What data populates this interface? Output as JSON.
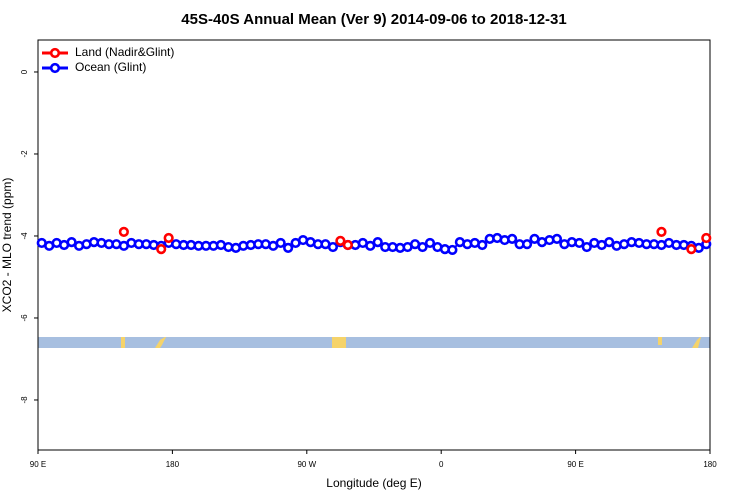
{
  "chart_data": {
    "type": "scatter",
    "title": "45S-40S Annual Mean (Ver 9)   2014-09-06 to 2018-12-31",
    "x_label": "Longitude (deg E)",
    "y_label": "XCO2 - MLO trend (ppm)",
    "xlim": [
      90,
      540
    ],
    "ylim": [
      -9.22,
      0.78
    ],
    "xticks": [
      {
        "value": 90,
        "label": "90 E"
      },
      180,
      {
        "value": 270,
        "label": "90 W"
      },
      {
        "value": 360,
        "label": "0"
      },
      {
        "value": 450,
        "label": "90 E"
      },
      {
        "value": 540,
        "label": "180"
      }
    ],
    "yticks": [
      0,
      -2,
      -4,
      -6,
      -8
    ],
    "legend": "top-left",
    "series": [
      {
        "name": "Land (Nadir&Glint)",
        "color": "#ff0000",
        "line": false,
        "x": [
          147.5,
          172.5,
          177.5,
          292.5,
          297.5,
          507.5,
          527.5,
          537.5
        ],
        "values": [
          -3.9,
          -4.32,
          -4.05,
          -4.12,
          -4.22,
          -3.9,
          -4.32,
          -4.05
        ]
      },
      {
        "name": "Ocean (Glint)",
        "color": "#0000ff",
        "line": true,
        "x": [
          92.5,
          97.5,
          102.5,
          107.5,
          112.5,
          117.5,
          122.5,
          127.5,
          132.5,
          137.5,
          142.5,
          147.5,
          152.5,
          157.5,
          162.5,
          167.5,
          172.5,
          177.5,
          182.5,
          187.5,
          192.5,
          197.5,
          202.5,
          207.5,
          212.5,
          217.5,
          222.5,
          227.5,
          232.5,
          237.5,
          242.5,
          247.5,
          252.5,
          257.5,
          262.5,
          267.5,
          272.5,
          277.5,
          282.5,
          287.5,
          292.5,
          297.5,
          302.5,
          307.5,
          312.5,
          317.5,
          322.5,
          327.5,
          332.5,
          337.5,
          342.5,
          347.5,
          352.5,
          357.5,
          362.5,
          367.5,
          372.5,
          377.5,
          382.5,
          387.5,
          392.5,
          397.5,
          402.5,
          407.5,
          412.5,
          417.5,
          422.5,
          427.5,
          432.5,
          437.5,
          442.5,
          447.5,
          452.5,
          457.5,
          462.5,
          467.5,
          472.5,
          477.5,
          482.5,
          487.5,
          492.5,
          497.5,
          502.5,
          507.5,
          512.5,
          517.5,
          522.5,
          527.5,
          532.5,
          537.5
        ],
        "values": [
          -4.17,
          -4.24,
          -4.17,
          -4.22,
          -4.15,
          -4.24,
          -4.2,
          -4.15,
          -4.17,
          -4.2,
          -4.2,
          -4.24,
          -4.17,
          -4.2,
          -4.2,
          -4.22,
          -4.24,
          -4.17,
          -4.2,
          -4.22,
          -4.22,
          -4.24,
          -4.24,
          -4.24,
          -4.22,
          -4.27,
          -4.29,
          -4.24,
          -4.22,
          -4.2,
          -4.2,
          -4.24,
          -4.17,
          -4.29,
          -4.17,
          -4.1,
          -4.15,
          -4.2,
          -4.2,
          -4.27,
          -4.15,
          -4.22,
          -4.22,
          -4.17,
          -4.24,
          -4.15,
          -4.27,
          -4.27,
          -4.29,
          -4.27,
          -4.2,
          -4.27,
          -4.17,
          -4.27,
          -4.32,
          -4.34,
          -4.15,
          -4.2,
          -4.17,
          -4.22,
          -4.07,
          -4.05,
          -4.1,
          -4.07,
          -4.2,
          -4.2,
          -4.07,
          -4.15,
          -4.1,
          -4.07,
          -4.2,
          -4.15,
          -4.17,
          -4.27,
          -4.17,
          -4.22,
          -4.15,
          -4.24,
          -4.2,
          -4.15,
          -4.17,
          -4.2,
          -4.2,
          -4.22,
          -4.17,
          -4.22,
          -4.22,
          -4.24,
          -4.29,
          -4.2
        ]
      }
    ]
  }
}
